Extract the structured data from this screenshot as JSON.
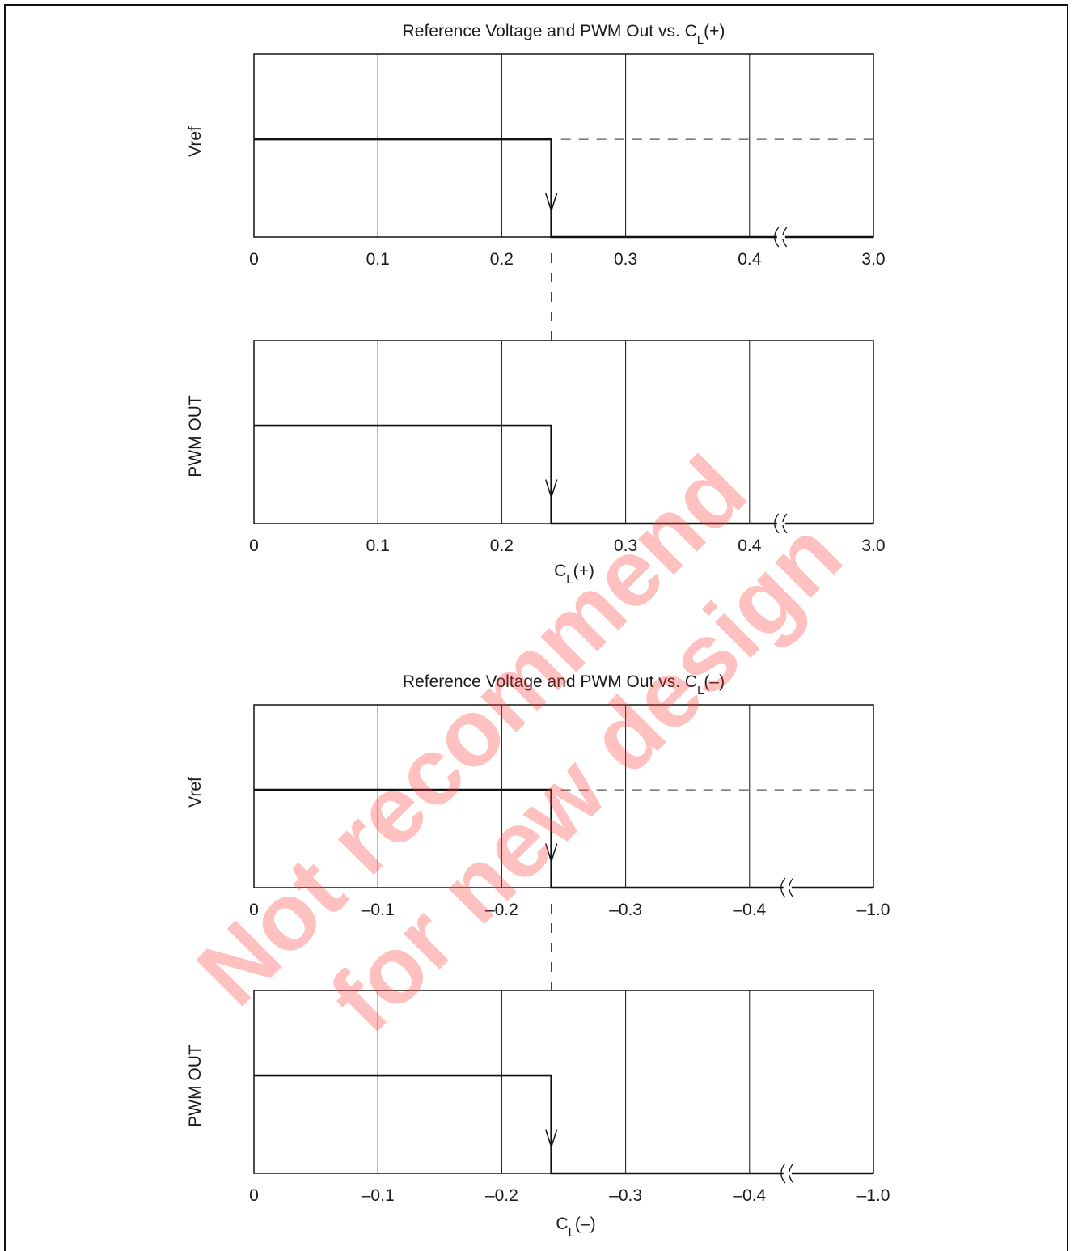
{
  "charts": [
    {
      "title_main": "Reference Voltage and PWM Out vs. C",
      "title_sub": "L",
      "title_tail": "(+)",
      "xlabel_main": "C",
      "xlabel_sub": "L",
      "xlabel_tail": "(+)"
    },
    {
      "title_main": "Reference Voltage and PWM Out vs. C",
      "title_sub": "L",
      "title_tail": "(–)",
      "xlabel_main": "C",
      "xlabel_sub": "L",
      "xlabel_tail": "(–)"
    }
  ],
  "watermark": {
    "line1": "Not recommend",
    "line2": "for new design",
    "color": "#ff3a3a"
  },
  "chart_data": [
    {
      "type": "line",
      "title": "Reference Voltage and PWM Out vs. CL(+)",
      "ylabel": "Vref",
      "xlabel": "",
      "x_tick_labels": [
        "0",
        "0.1",
        "0.2",
        "0.3",
        "0.4",
        "3.0"
      ],
      "axis_break": "between 0.4 and 3.0",
      "series": [
        {
          "x": [
            0,
            0.24,
            0.24,
            3.0
          ],
          "y": [
            "high",
            "high",
            "low",
            "low"
          ]
        }
      ],
      "reference_line": "dashed at high level from 0.24 to 3.0",
      "grid": true
    },
    {
      "type": "line",
      "title": "",
      "ylabel": "PWM OUT",
      "xlabel": "CL(+)",
      "x_tick_labels": [
        "0",
        "0.1",
        "0.2",
        "0.3",
        "0.4",
        "3.0"
      ],
      "axis_break": "between 0.4 and 3.0",
      "series": [
        {
          "x": [
            0,
            0.24,
            0.24,
            3.0
          ],
          "y": [
            "high",
            "high",
            "low",
            "low"
          ]
        }
      ],
      "grid": true
    },
    {
      "type": "line",
      "title": "Reference Voltage and PWM Out vs. CL(–)",
      "ylabel": "Vref",
      "xlabel": "",
      "x_tick_labels": [
        "0",
        "–0.1",
        "–0.2",
        "–0.3",
        "–0.4",
        "–1.0"
      ],
      "axis_break": "between –0.4 and –1.0",
      "series": [
        {
          "x": [
            0,
            -0.24,
            -0.24,
            -1.0
          ],
          "y": [
            "high",
            "high",
            "low",
            "low"
          ]
        }
      ],
      "reference_line": "dashed at high level from –0.24 to –1.0",
      "grid": true
    },
    {
      "type": "line",
      "title": "",
      "ylabel": "PWM OUT",
      "xlabel": "CL(–)",
      "x_tick_labels": [
        "0",
        "–0.1",
        "–0.2",
        "–0.3",
        "–0.4",
        "–1.0"
      ],
      "axis_break": "between –0.4 and –1.0",
      "series": [
        {
          "x": [
            0,
            -0.24,
            -0.24,
            -1.0
          ],
          "y": [
            "high",
            "high",
            "low",
            "low"
          ]
        }
      ],
      "grid": true
    }
  ]
}
